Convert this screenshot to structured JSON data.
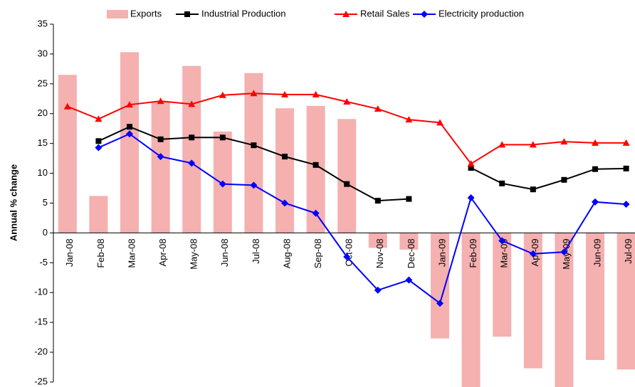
{
  "chart_data": {
    "type": "combo",
    "y_label": "Annual % change",
    "categories": [
      "Jan-08",
      "Feb-08",
      "Mar-08",
      "Apr-08",
      "May-08",
      "Jun-08",
      "Jul-08",
      "Aug-08",
      "Sep-08",
      "Oct-08",
      "Nov-08",
      "Dec-08",
      "Jan-09",
      "Feb-09",
      "Mar-09",
      "Apr-09",
      "May-09",
      "Jun-09",
      "Jul-09"
    ],
    "series": [
      {
        "name": "Exports",
        "type": "bar",
        "color": "#f5b0b0",
        "values": [
          26.5,
          6.2,
          30.3,
          22,
          28,
          17,
          26.8,
          20.9,
          21.3,
          19.1,
          -2.5,
          -2.8,
          -17.7,
          -26,
          -17.4,
          -22.7,
          -26,
          -21.3,
          -22.9
        ]
      },
      {
        "name": "Industrial Production",
        "type": "line",
        "marker": "square",
        "color": "#000000",
        "values": [
          null,
          15.4,
          17.8,
          15.7,
          16.0,
          16.0,
          14.7,
          12.8,
          11.4,
          8.2,
          5.4,
          5.7,
          null,
          10.9,
          8.3,
          7.3,
          8.9,
          10.7,
          10.8
        ]
      },
      {
        "name": "Retail Sales",
        "type": "line",
        "marker": "triangle",
        "color": "#ff0000",
        "values": [
          21.2,
          19.1,
          21.5,
          22.1,
          21.6,
          23.1,
          23.4,
          23.2,
          23.2,
          22.0,
          20.8,
          19.0,
          18.5,
          11.6,
          14.8,
          14.8,
          15.3,
          15.1,
          15.1
        ]
      },
      {
        "name": "Electricity production",
        "type": "line",
        "marker": "diamond",
        "color": "#0000ff",
        "values": [
          null,
          14.3,
          16.6,
          12.8,
          11.7,
          8.2,
          8.0,
          5.0,
          3.3,
          -4.0,
          -9.6,
          -7.9,
          -11.8,
          5.9,
          -1.3,
          -3.5,
          -3.2,
          5.2,
          4.8
        ]
      }
    ],
    "ylim": [
      -25,
      35
    ],
    "yticks": [
      -25,
      -20,
      -15,
      -10,
      -5,
      0,
      5,
      10,
      15,
      20,
      25,
      30,
      35
    ],
    "legend": "top"
  }
}
